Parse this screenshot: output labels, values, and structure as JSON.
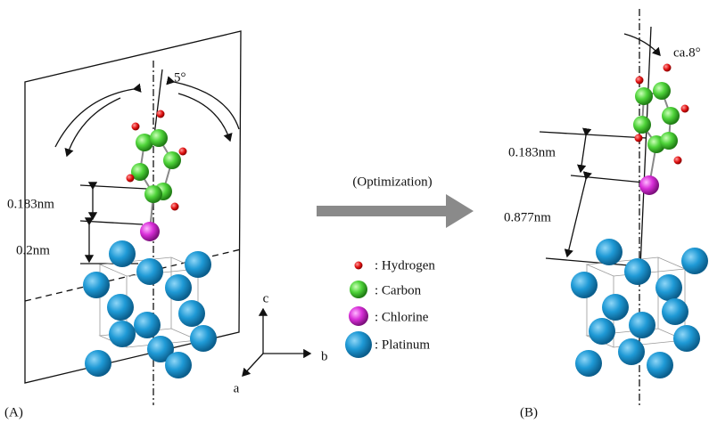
{
  "panel_a": {
    "label": "(A)",
    "angle": "5°",
    "distances": [
      "0.183nm",
      "0.2nm"
    ]
  },
  "arrow_label": "(Optimization)",
  "legend": [
    {
      "label": ": Hydrogen"
    },
    {
      "label": ": Carbon"
    },
    {
      "label": ": Chlorine"
    },
    {
      "label": ": Platinum"
    }
  ],
  "axes": {
    "a": "a",
    "b": "b",
    "c": "c"
  },
  "panel_b": {
    "label": "(B)",
    "angle": "ca.8°",
    "distances": [
      "0.183nm",
      "0.877nm"
    ]
  }
}
